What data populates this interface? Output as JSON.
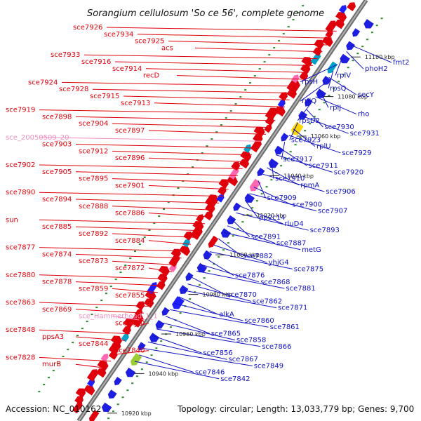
{
  "title": "Sorangium cellulosum 'So ce 56', complete genome",
  "footer": {
    "accession": "Accession: NC_010162",
    "topology": "Topology: circular; Length: 13,033,779 bp; Genes: 9,700"
  },
  "colors": {
    "forward_label": "#e0000b",
    "reverse_label": "#1010c0",
    "rna_label": "#f08fbf",
    "backbone": "#7a7a7a",
    "gc_dots": "#2a8a2a"
  },
  "kbp_ticks": [
    "10920 kbp",
    "10940 kbp",
    "10960 kbp",
    "10980 kbp",
    "11000 kbp",
    "11020 kbp",
    "11040 kbp",
    "11060 kbp",
    "11080 kbp",
    "11100 kbp"
  ],
  "forward_labels": [
    {
      "text": "sce7926",
      "kind": "gene"
    },
    {
      "text": "sce7934",
      "kind": "gene"
    },
    {
      "text": "sce7925",
      "kind": "gene"
    },
    {
      "text": "acs",
      "kind": "gene"
    },
    {
      "text": "sce7933",
      "kind": "gene"
    },
    {
      "text": "sce7916",
      "kind": "gene"
    },
    {
      "text": "sce7914",
      "kind": "gene"
    },
    {
      "text": "recD",
      "kind": "gene"
    },
    {
      "text": "sce7924",
      "kind": "gene"
    },
    {
      "text": "sce7928",
      "kind": "gene"
    },
    {
      "text": "sce7915",
      "kind": "gene"
    },
    {
      "text": "sce7913",
      "kind": "gene"
    },
    {
      "text": "sce7919",
      "kind": "gene"
    },
    {
      "text": "sce7898",
      "kind": "gene"
    },
    {
      "text": "sce7904",
      "kind": "gene"
    },
    {
      "text": "sce7897",
      "kind": "gene"
    },
    {
      "text": "sce_20050509_20",
      "kind": "rna"
    },
    {
      "text": "sce7903",
      "kind": "gene"
    },
    {
      "text": "sce7912",
      "kind": "gene"
    },
    {
      "text": "sce7896",
      "kind": "gene"
    },
    {
      "text": "sce7902",
      "kind": "gene"
    },
    {
      "text": "sce7905",
      "kind": "gene"
    },
    {
      "text": "sce7895",
      "kind": "gene"
    },
    {
      "text": "sce7901",
      "kind": "gene"
    },
    {
      "text": "sce7890",
      "kind": "gene"
    },
    {
      "text": "sce7894",
      "kind": "gene"
    },
    {
      "text": "sce7888",
      "kind": "gene"
    },
    {
      "text": "sce7886",
      "kind": "gene"
    },
    {
      "text": "sun",
      "kind": "gene"
    },
    {
      "text": "sce7885",
      "kind": "gene"
    },
    {
      "text": "sce7892",
      "kind": "gene"
    },
    {
      "text": "sce7884",
      "kind": "gene"
    },
    {
      "text": "sce7877",
      "kind": "gene"
    },
    {
      "text": "sce7874",
      "kind": "gene"
    },
    {
      "text": "sce7873",
      "kind": "gene"
    },
    {
      "text": "sce7872",
      "kind": "gene"
    },
    {
      "text": "sce7880",
      "kind": "gene"
    },
    {
      "text": "sce7878",
      "kind": "gene"
    },
    {
      "text": "sce7859",
      "kind": "gene"
    },
    {
      "text": "sce7855",
      "kind": "gene"
    },
    {
      "text": "sce7863",
      "kind": "gene"
    },
    {
      "text": "sce7869",
      "kind": "gene"
    },
    {
      "text": "sce_Hammerhead_1_1",
      "kind": "rna"
    },
    {
      "text": "sce7850",
      "kind": "gene"
    },
    {
      "text": "sce7848",
      "kind": "gene"
    },
    {
      "text": "ppsA3",
      "kind": "gene"
    },
    {
      "text": "sce7844",
      "kind": "gene"
    },
    {
      "text": "sce7840",
      "kind": "gene"
    },
    {
      "text": "sce7828",
      "kind": "gene"
    },
    {
      "text": "murB",
      "kind": "gene"
    }
  ],
  "reverse_labels": [
    "fmt2",
    "phoH2",
    "rplV",
    "rpsH",
    "rpsQ",
    "secY",
    "rplQ",
    "rplJ",
    "rho",
    "rpsD2",
    "sce7930",
    "sce7931",
    "sce7923",
    "rplU",
    "sce7929",
    "sce7917",
    "sce7911",
    "sce7920",
    "sce7910",
    "rpmA",
    "sce7906",
    "sce7909",
    "sce7900",
    "sce7907",
    "pp2c14",
    "rluD4",
    "sce7893",
    "sce7891",
    "sce7887",
    "metG",
    "sce7882",
    "yhjG4",
    "sce7875",
    "sce7876",
    "sce7868",
    "sce7881",
    "sce7870",
    "sce7862",
    "sce7871",
    "alkA",
    "sce7860",
    "sce7861",
    "sce7865",
    "sce7858",
    "sce7866",
    "sce7856",
    "sce7867",
    "sce7849",
    "sce7846",
    "sce7842"
  ]
}
